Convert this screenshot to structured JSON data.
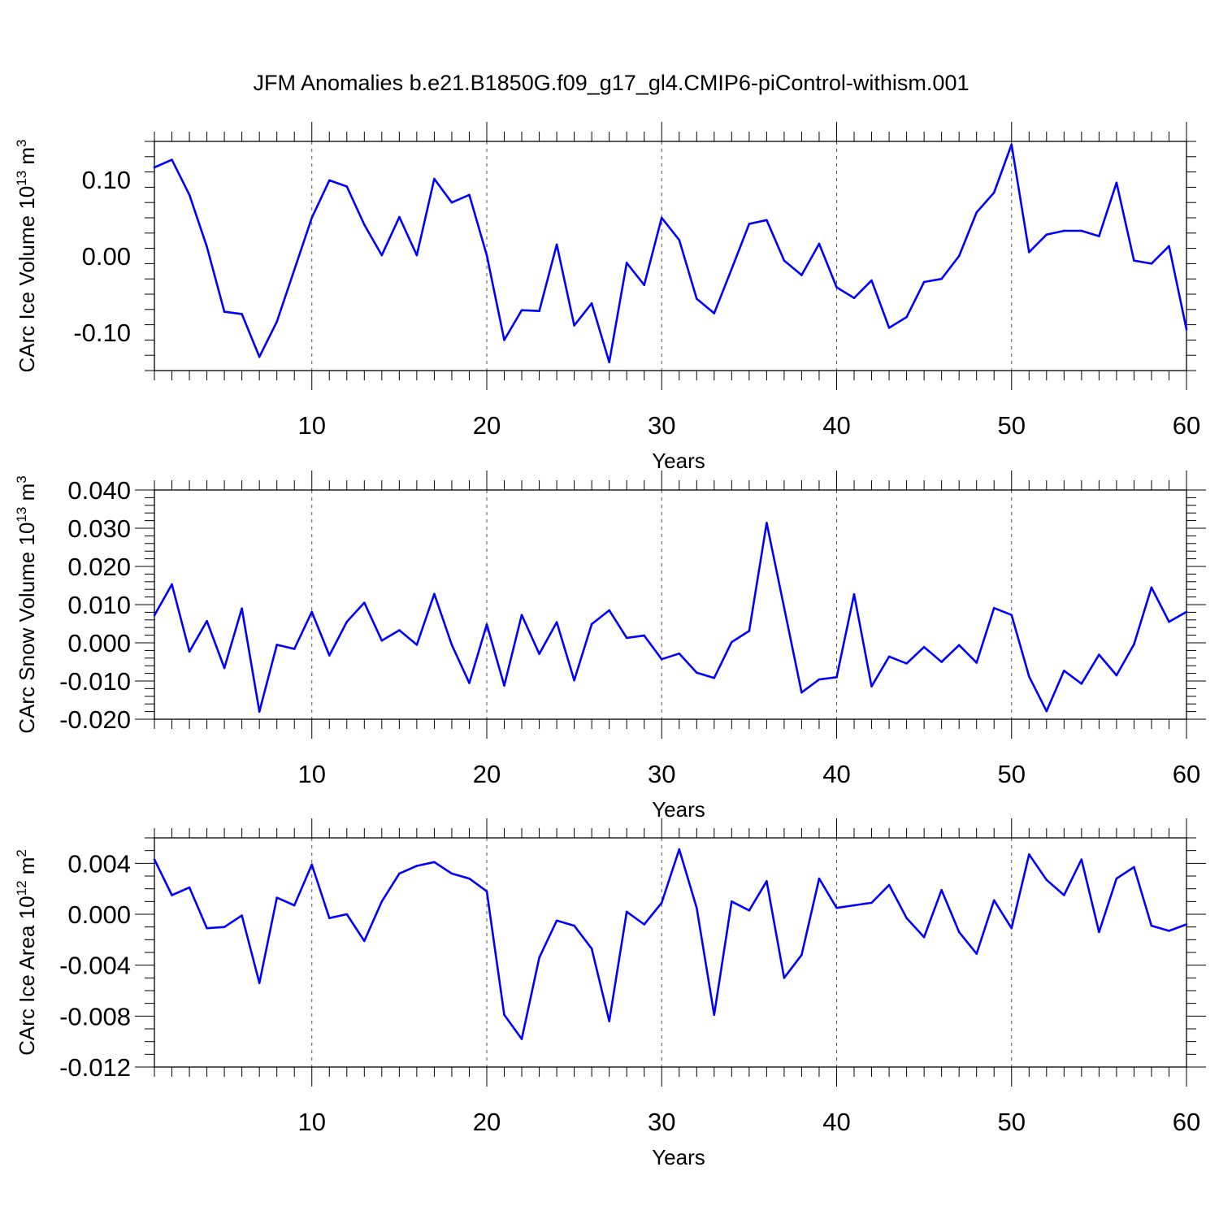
{
  "title": "JFM Anomalies b.e21.B1850G.f09_g17_gl4.CMIP6-piControl-withism.001",
  "chart_data": [
    {
      "type": "line",
      "xlabel": "Years",
      "ylabel": "CArc Ice Volume 10",
      "ylabel_sup": "13",
      "ylabel_unit": " m",
      "ylabel_unit_sup": "3",
      "xlim": [
        1,
        60
      ],
      "ylim": [
        -0.15,
        0.15
      ],
      "xticks": [
        10,
        20,
        30,
        40,
        50,
        60
      ],
      "xtick_labels": [
        "10",
        "20",
        "30",
        "40",
        "50",
        "60"
      ],
      "yticks": [
        0.1,
        0.0,
        -0.1
      ],
      "ytick_labels": [
        "0.10",
        "0.00",
        "-0.10"
      ],
      "y_minor_step": 0.02,
      "series": [
        {
          "name": "Ice Volume",
          "color": "#0000ff",
          "x": [
            1,
            2,
            3,
            4,
            5,
            6,
            7,
            8,
            9,
            10,
            11,
            12,
            13,
            14,
            15,
            16,
            17,
            18,
            19,
            20,
            21,
            22,
            23,
            24,
            25,
            26,
            27,
            28,
            29,
            30,
            31,
            32,
            33,
            34,
            35,
            36,
            37,
            38,
            39,
            40,
            41,
            42,
            43,
            44,
            45,
            46,
            47,
            48,
            49,
            50,
            51,
            52,
            53,
            54,
            55,
            56,
            57,
            58,
            59,
            60
          ],
          "values": [
            0.116,
            0.126,
            0.08,
            0.012,
            -0.073,
            -0.076,
            -0.132,
            -0.086,
            -0.018,
            0.05,
            0.099,
            0.091,
            0.041,
            0.001,
            0.051,
            0.001,
            0.101,
            0.07,
            0.08,
            0.001,
            -0.11,
            -0.071,
            -0.072,
            0.015,
            -0.091,
            -0.062,
            -0.139,
            -0.009,
            -0.038,
            0.05,
            0.021,
            -0.056,
            -0.075,
            -0.017,
            0.042,
            0.047,
            -0.006,
            -0.025,
            0.016,
            -0.041,
            -0.055,
            -0.032,
            -0.094,
            -0.08,
            -0.034,
            -0.03,
            0.0,
            0.057,
            0.083,
            0.146,
            0.005,
            0.028,
            0.033,
            0.033,
            0.026,
            0.096,
            -0.006,
            -0.01,
            0.013,
            -0.096
          ]
        }
      ]
    },
    {
      "type": "line",
      "xlabel": "Years",
      "ylabel": "CArc Snow Volume 10",
      "ylabel_sup": "13",
      "ylabel_unit": " m",
      "ylabel_unit_sup": "3",
      "xlim": [
        1,
        60
      ],
      "ylim": [
        -0.02,
        0.04
      ],
      "xticks": [
        10,
        20,
        30,
        40,
        50,
        60
      ],
      "xtick_labels": [
        "10",
        "20",
        "30",
        "40",
        "50",
        "60"
      ],
      "yticks": [
        0.04,
        0.03,
        0.02,
        0.01,
        0.0,
        -0.01,
        -0.02
      ],
      "ytick_labels": [
        "0.040",
        "0.030",
        "0.020",
        "0.010",
        "0.000",
        "-0.010",
        "-0.020"
      ],
      "y_minor_step": 0.002,
      "series": [
        {
          "name": "Snow Volume",
          "color": "#0000ff",
          "x": [
            1,
            2,
            3,
            4,
            5,
            6,
            7,
            8,
            9,
            10,
            11,
            12,
            13,
            14,
            15,
            16,
            17,
            18,
            19,
            20,
            21,
            22,
            23,
            24,
            25,
            26,
            27,
            28,
            29,
            30,
            31,
            32,
            33,
            34,
            35,
            36,
            37,
            38,
            39,
            40,
            41,
            42,
            43,
            44,
            45,
            46,
            47,
            48,
            49,
            50,
            51,
            52,
            53,
            54,
            55,
            56,
            57,
            58,
            59,
            60
          ],
          "values": [
            0.0072,
            0.0153,
            -0.0023,
            0.0057,
            -0.0066,
            0.009,
            -0.018,
            -0.0005,
            -0.0016,
            0.0081,
            -0.0033,
            0.0055,
            0.0105,
            0.0006,
            0.0033,
            -0.0005,
            0.0128,
            -0.0005,
            -0.0105,
            0.0048,
            -0.0112,
            0.0073,
            -0.0029,
            0.0054,
            -0.0098,
            0.0049,
            0.0085,
            0.0013,
            0.0019,
            -0.0043,
            -0.0028,
            -0.0078,
            -0.0092,
            0.0002,
            0.0031,
            0.0314,
            0.0092,
            -0.013,
            -0.0096,
            -0.009,
            0.0127,
            -0.0114,
            -0.0036,
            -0.0054,
            -0.0011,
            -0.005,
            -0.0006,
            -0.0052,
            0.0091,
            0.0073,
            -0.0088,
            -0.0179,
            -0.0073,
            -0.0107,
            -0.0031,
            -0.0085,
            -0.0004,
            0.0145,
            0.0055,
            0.0081
          ]
        }
      ]
    },
    {
      "type": "line",
      "xlabel": "Years",
      "ylabel": "CArc Ice Area 10",
      "ylabel_sup": "12",
      "ylabel_unit": " m",
      "ylabel_unit_sup": "2",
      "xlim": [
        1,
        60
      ],
      "ylim": [
        -0.012,
        0.006
      ],
      "xticks": [
        10,
        20,
        30,
        40,
        50,
        60
      ],
      "xtick_labels": [
        "10",
        "20",
        "30",
        "40",
        "50",
        "60"
      ],
      "yticks": [
        0.004,
        0.0,
        -0.004,
        -0.008,
        -0.012
      ],
      "ytick_labels": [
        "0.004",
        "0.000",
        "-0.004",
        "-0.008",
        "-0.012"
      ],
      "y_minor_step": 0.001,
      "series": [
        {
          "name": "Ice Area",
          "color": "#0000ff",
          "x": [
            1,
            2,
            3,
            4,
            5,
            6,
            7,
            8,
            9,
            10,
            11,
            12,
            13,
            14,
            15,
            16,
            17,
            18,
            19,
            20,
            21,
            22,
            23,
            24,
            25,
            26,
            27,
            28,
            29,
            30,
            31,
            32,
            33,
            34,
            35,
            36,
            37,
            38,
            39,
            40,
            41,
            42,
            43,
            44,
            45,
            46,
            47,
            48,
            49,
            50,
            51,
            52,
            53,
            54,
            55,
            56,
            57,
            58,
            59,
            60
          ],
          "values": [
            0.0043,
            0.0015,
            0.0021,
            -0.0011,
            -0.001,
            -0.0001,
            -0.0054,
            0.0013,
            0.0007,
            0.0039,
            -0.0003,
            0.0,
            -0.0021,
            0.001,
            0.0032,
            0.0038,
            0.0041,
            0.0032,
            0.0028,
            0.0018,
            -0.0079,
            -0.0098,
            -0.0034,
            -0.0005,
            -0.0009,
            -0.0027,
            -0.0084,
            0.0002,
            -0.0008,
            0.0009,
            0.0051,
            0.0005,
            -0.0079,
            0.001,
            0.0003,
            0.0026,
            -0.005,
            -0.0032,
            0.0028,
            0.0005,
            0.0007,
            0.0009,
            0.0023,
            -0.0003,
            -0.0018,
            0.0019,
            -0.0014,
            -0.0031,
            0.0011,
            -0.0011,
            0.0047,
            0.0027,
            0.0015,
            0.0043,
            -0.0014,
            0.0028,
            0.0037,
            -0.0009,
            -0.0013,
            -0.0008
          ]
        }
      ]
    }
  ]
}
